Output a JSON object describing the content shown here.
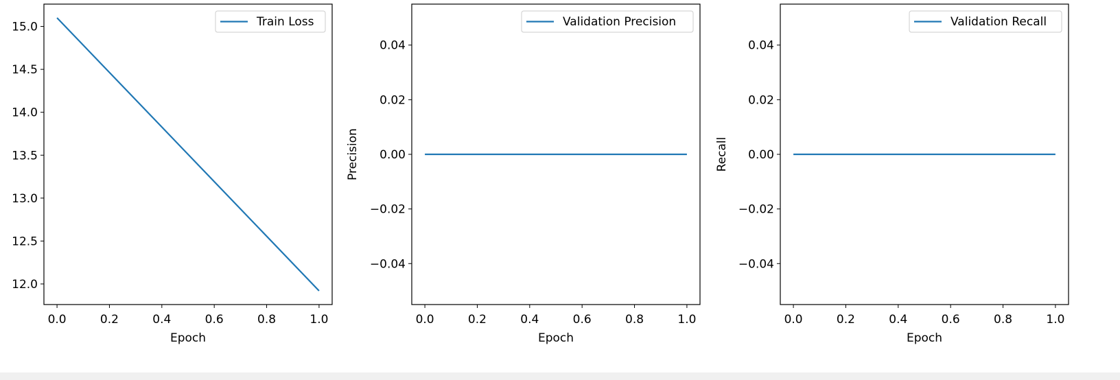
{
  "chart_data": [
    {
      "type": "line",
      "title": "",
      "xlabel": "Epoch",
      "ylabel": "",
      "xlim": [
        -0.05,
        1.05
      ],
      "ylim": [
        11.76,
        15.26
      ],
      "xticks": [
        0.0,
        0.2,
        0.4,
        0.6,
        0.8,
        1.0
      ],
      "yticks": [
        12.0,
        12.5,
        13.0,
        13.5,
        14.0,
        14.5,
        15.0
      ],
      "tick_decimals": {
        "x": 1,
        "y": 1
      },
      "grid": false,
      "legend_loc": "upper right",
      "series": [
        {
          "name": "Train Loss",
          "color": "#1f77b4",
          "x": [
            0,
            1
          ],
          "y": [
            15.1,
            11.92
          ]
        }
      ]
    },
    {
      "type": "line",
      "title": "",
      "xlabel": "Epoch",
      "ylabel": "Precision",
      "xlim": [
        -0.05,
        1.05
      ],
      "ylim": [
        -0.055,
        0.055
      ],
      "xticks": [
        0.0,
        0.2,
        0.4,
        0.6,
        0.8,
        1.0
      ],
      "yticks": [
        -0.04,
        -0.02,
        0.0,
        0.02,
        0.04
      ],
      "tick_decimals": {
        "x": 1,
        "y": 2
      },
      "grid": false,
      "legend_loc": "upper right",
      "series": [
        {
          "name": "Validation Precision",
          "color": "#1f77b4",
          "x": [
            0,
            1
          ],
          "y": [
            0.0,
            0.0
          ]
        }
      ]
    },
    {
      "type": "line",
      "title": "",
      "xlabel": "Epoch",
      "ylabel": "Recall",
      "xlim": [
        -0.05,
        1.05
      ],
      "ylim": [
        -0.055,
        0.055
      ],
      "xticks": [
        0.0,
        0.2,
        0.4,
        0.6,
        0.8,
        1.0
      ],
      "yticks": [
        -0.04,
        -0.02,
        0.0,
        0.02,
        0.04
      ],
      "tick_decimals": {
        "x": 1,
        "y": 2
      },
      "grid": false,
      "legend_loc": "upper right",
      "series": [
        {
          "name": "Validation Recall",
          "color": "#1f77b4",
          "x": [
            0,
            1
          ],
          "y": [
            0.0,
            0.0
          ]
        }
      ]
    }
  ]
}
